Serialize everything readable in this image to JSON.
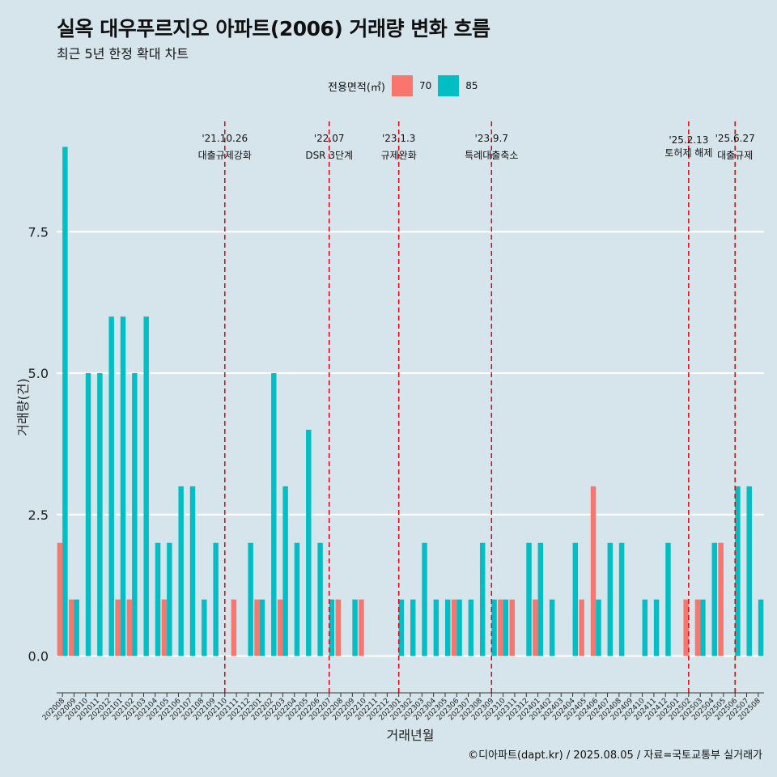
{
  "header": {
    "title": "실옥 대우푸르지오 아파트(2006) 거래량 변화 흐름",
    "subtitle": "최근 5년 한정 확대 차트"
  },
  "legend": {
    "title": "전용면적(㎡)",
    "items": [
      {
        "label": "70",
        "color": "#f8766d"
      },
      {
        "label": "85",
        "color": "#00bfc4"
      }
    ]
  },
  "caption": "©디아파트(dapt.kr) / 2025.08.05 / 자료=국토교통부 실거래가",
  "chart_data": {
    "type": "bar",
    "xlabel": "거래년월",
    "ylabel": "거래량(건)",
    "ylim": [
      -0.65,
      9.45
    ],
    "yticks": [
      0.0,
      2.5,
      5.0,
      7.5
    ],
    "ytick_labels": [
      "0.0",
      "2.5",
      "5.0",
      "7.5"
    ],
    "grid": true,
    "legend_position": "top",
    "categories": [
      "202008",
      "202009",
      "202010",
      "202011",
      "202012",
      "202101",
      "202102",
      "202103",
      "202104",
      "202105",
      "202106",
      "202107",
      "202108",
      "202109",
      "202110",
      "202111",
      "202112",
      "202201",
      "202202",
      "202203",
      "202204",
      "202205",
      "202206",
      "202207",
      "202208",
      "202209",
      "202210",
      "202211",
      "202212",
      "202301",
      "202302",
      "202303",
      "202304",
      "202305",
      "202306",
      "202307",
      "202308",
      "202309",
      "202310",
      "202311",
      "202312",
      "202401",
      "202402",
      "202403",
      "202404",
      "202405",
      "202406",
      "202407",
      "202408",
      "202409",
      "202410",
      "202411",
      "202412",
      "202501",
      "202502",
      "202503",
      "202504",
      "202505",
      "202506",
      "202507",
      "202508"
    ],
    "series": [
      {
        "name": "70",
        "color": "#f8766d",
        "values": [
          2,
          1,
          0,
          0,
          0,
          1,
          1,
          0,
          0,
          1,
          0,
          0,
          0,
          0,
          0,
          1,
          0,
          1,
          0,
          1,
          0,
          0,
          0,
          0,
          1,
          0,
          1,
          0,
          0,
          0,
          0,
          0,
          0,
          0,
          1,
          0,
          0,
          0,
          1,
          1,
          0,
          1,
          0,
          0,
          0,
          1,
          3,
          0,
          0,
          0,
          0,
          0,
          0,
          0,
          1,
          1,
          0,
          2,
          0,
          0,
          0
        ]
      },
      {
        "name": "85",
        "color": "#00bfc4",
        "values": [
          9,
          1,
          5,
          5,
          6,
          6,
          5,
          6,
          2,
          2,
          3,
          3,
          1,
          2,
          0,
          0,
          2,
          1,
          5,
          3,
          2,
          4,
          2,
          1,
          0,
          1,
          0,
          0,
          0,
          1,
          1,
          2,
          1,
          1,
          1,
          1,
          2,
          1,
          1,
          0,
          2,
          2,
          1,
          0,
          2,
          0,
          1,
          2,
          2,
          0,
          1,
          1,
          2,
          0,
          0,
          1,
          2,
          0,
          3,
          3,
          1
        ]
      }
    ],
    "annotations": [
      {
        "x": "202110",
        "date": "'21.10.26",
        "text": "대출규제강화"
      },
      {
        "x": "202207",
        "date": "'22.07",
        "text": "DSR 3단계"
      },
      {
        "x": "202301",
        "date": "'23.1.3",
        "text": "규제완화"
      },
      {
        "x": "202309",
        "date": "'23.9.7",
        "text": "특례대출축소"
      },
      {
        "x": "202502",
        "date": "'25.2.13",
        "text": "토허제 해제"
      },
      {
        "x": "202506",
        "date": "'25.6.27",
        "text": "대출규제"
      }
    ],
    "annotation_line_color": "#e8000b"
  }
}
